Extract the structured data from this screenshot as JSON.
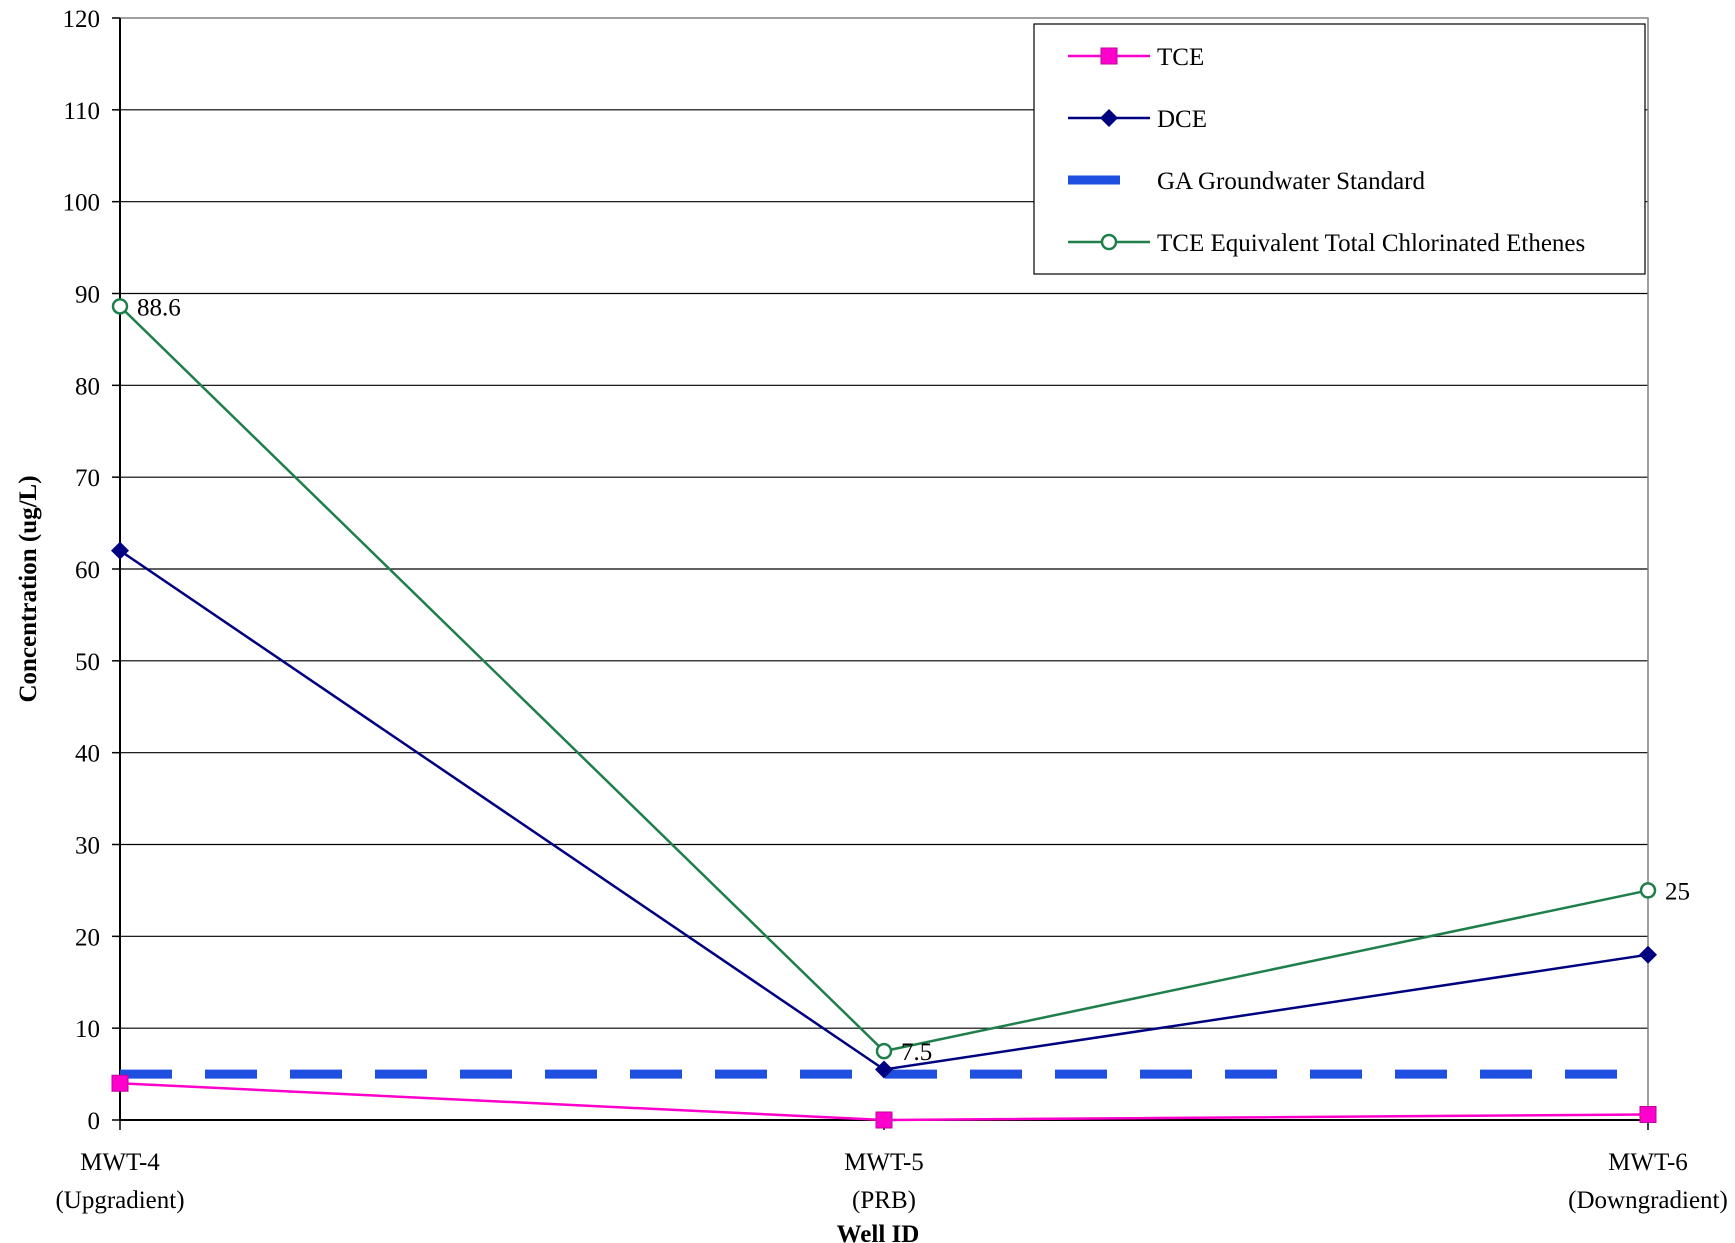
{
  "chart_data": {
    "type": "line",
    "title": "",
    "xlabel": "Well ID",
    "ylabel": "Concentration (ug/L)",
    "ylim": [
      0,
      120
    ],
    "ytick_step": 10,
    "yticks": [
      "0",
      "10",
      "20",
      "30",
      "40",
      "50",
      "60",
      "70",
      "80",
      "90",
      "100",
      "110",
      "120"
    ],
    "grid": "horizontal",
    "legend_position": "top-right",
    "categories": [
      {
        "name": "MWT-4",
        "sub": "(Upgradient)"
      },
      {
        "name": "MWT-5",
        "sub": "(PRB)"
      },
      {
        "name": "MWT-6",
        "sub": "(Downgradient)"
      }
    ],
    "series": [
      {
        "name": "TCE",
        "values": [
          4,
          0,
          0.6
        ],
        "color": "#ff00cc",
        "marker": "square",
        "style": "solid"
      },
      {
        "name": "DCE",
        "values": [
          62,
          5.5,
          18
        ],
        "color": "#000080",
        "marker": "diamond",
        "style": "solid"
      },
      {
        "name": "GA Groundwater Standard",
        "values": [
          5,
          5,
          5
        ],
        "color": "#1f4fe0",
        "marker": "none",
        "style": "dashed"
      },
      {
        "name": "TCE Equivalent Total Chlorinated Ethenes",
        "values": [
          88.6,
          7.5,
          25
        ],
        "color": "#1e7f4a",
        "marker": "circle-open",
        "style": "solid",
        "data_labels": [
          "88.6",
          "7.5",
          "25"
        ]
      }
    ]
  }
}
